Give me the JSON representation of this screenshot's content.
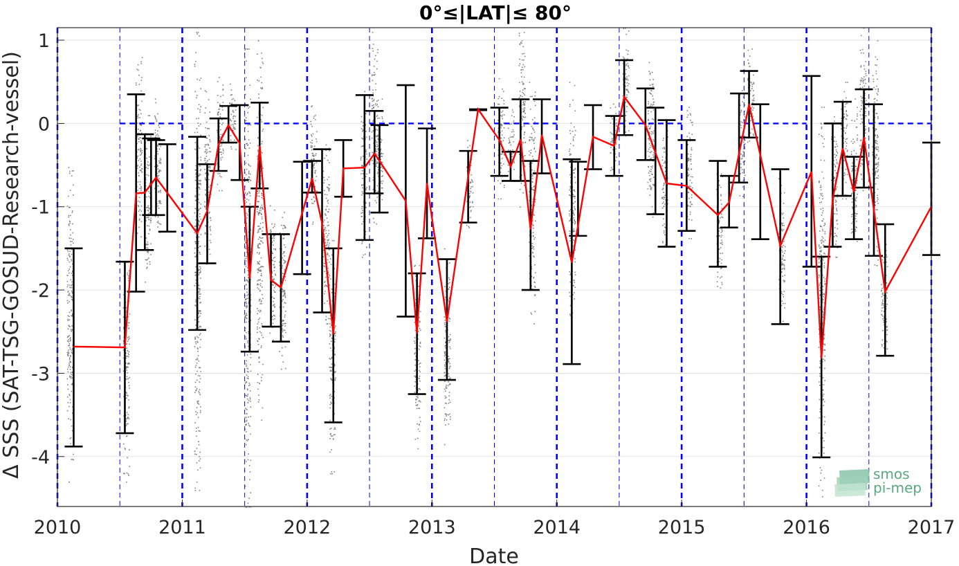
{
  "chart_data": {
    "type": "line",
    "title": "0°≤|LAT|≤ 80°",
    "xlabel": "Date",
    "ylabel": "Δ SSS (SAT-TSG-GOSUD-Research-vessel)",
    "xlim": [
      2010,
      2017
    ],
    "ylim": [
      -4.6,
      1.15
    ],
    "xticks": [
      2010,
      2011,
      2012,
      2013,
      2014,
      2015,
      2016,
      2017
    ],
    "xtick_labels": [
      "2010",
      "2011",
      "2012",
      "2013",
      "2014",
      "2015",
      "2016",
      "2017"
    ],
    "yticks": [
      1,
      0,
      -1,
      -2,
      -3,
      -4
    ],
    "ytick_labels": [
      "1",
      "0",
      "-1",
      "-2",
      "-3",
      "-4"
    ],
    "grid": true,
    "year_lines": [
      2010,
      2011,
      2012,
      2013,
      2014,
      2015,
      2016,
      2017
    ],
    "half_year_lines": [
      2010.5,
      2011.5,
      2012.5,
      2013.5,
      2014.5,
      2015.5,
      2016.5
    ],
    "zero_segments": [
      [
        2010.5,
        2011.0
      ],
      [
        2011.5,
        2012.0
      ],
      [
        2012.5,
        2013.0
      ],
      [
        2013.5,
        2014.0
      ],
      [
        2014.5,
        2015.0
      ],
      [
        2015.5,
        2016.0
      ],
      [
        2016.5,
        2017.0
      ]
    ],
    "series": [
      {
        "type": "line",
        "color": "#ff0000",
        "points": [
          {
            "x": 2010.13,
            "y": -2.68
          },
          {
            "x": 2010.54,
            "y": -2.69
          },
          {
            "x": 2010.63,
            "y": -0.84
          },
          {
            "x": 2010.7,
            "y": -0.83
          },
          {
            "x": 2010.79,
            "y": -0.65
          },
          {
            "x": 2011.12,
            "y": -1.32
          },
          {
            "x": 2011.2,
            "y": -1.05
          },
          {
            "x": 2011.29,
            "y": -0.25
          },
          {
            "x": 2011.37,
            "y": -0.02
          },
          {
            "x": 2011.46,
            "y": -0.24
          },
          {
            "x": 2011.54,
            "y": -1.86
          },
          {
            "x": 2011.62,
            "y": -0.27
          },
          {
            "x": 2011.71,
            "y": -1.88
          },
          {
            "x": 2011.79,
            "y": -1.97
          },
          {
            "x": 2012.04,
            "y": -0.66
          },
          {
            "x": 2012.12,
            "y": -1.2
          },
          {
            "x": 2012.21,
            "y": -2.53
          },
          {
            "x": 2012.29,
            "y": -0.54
          },
          {
            "x": 2012.46,
            "y": -0.53
          },
          {
            "x": 2012.54,
            "y": -0.36
          },
          {
            "x": 2012.79,
            "y": -0.93
          },
          {
            "x": 2012.88,
            "y": -2.52
          },
          {
            "x": 2012.96,
            "y": -0.72
          },
          {
            "x": 2013.12,
            "y": -2.38
          },
          {
            "x": 2013.37,
            "y": 0.17
          },
          {
            "x": 2013.54,
            "y": -0.2
          },
          {
            "x": 2013.63,
            "y": -0.52
          },
          {
            "x": 2013.71,
            "y": -0.19
          },
          {
            "x": 2013.79,
            "y": -1.27
          },
          {
            "x": 2013.88,
            "y": -0.14
          },
          {
            "x": 2014.12,
            "y": -1.67
          },
          {
            "x": 2014.29,
            "y": -0.16
          },
          {
            "x": 2014.46,
            "y": -0.27
          },
          {
            "x": 2014.54,
            "y": 0.32
          },
          {
            "x": 2014.71,
            "y": -0.02
          },
          {
            "x": 2014.88,
            "y": -0.72
          },
          {
            "x": 2015.04,
            "y": -0.75
          },
          {
            "x": 2015.29,
            "y": -1.1
          },
          {
            "x": 2015.38,
            "y": -0.95
          },
          {
            "x": 2015.54,
            "y": 0.23
          },
          {
            "x": 2015.79,
            "y": -1.47
          },
          {
            "x": 2016.04,
            "y": -0.58
          },
          {
            "x": 2016.12,
            "y": -2.82
          },
          {
            "x": 2016.21,
            "y": -0.9
          },
          {
            "x": 2016.29,
            "y": -0.3
          },
          {
            "x": 2016.38,
            "y": -0.82
          },
          {
            "x": 2016.46,
            "y": -0.17
          },
          {
            "x": 2016.63,
            "y": -2.02
          },
          {
            "x": 2017.0,
            "y": -1.0
          }
        ]
      },
      {
        "type": "errorbar",
        "color": "#000000",
        "bars": [
          {
            "x": 2010.13,
            "low": -3.88,
            "high": -1.5
          },
          {
            "x": 2010.54,
            "low": -3.72,
            "high": -1.66
          },
          {
            "x": 2010.63,
            "low": -2.02,
            "high": 0.35
          },
          {
            "x": 2010.7,
            "low": -1.52,
            "high": -0.13
          },
          {
            "x": 2010.79,
            "low": -1.1,
            "high": -0.2
          },
          {
            "x": 2010.88,
            "low": -1.3,
            "high": -0.25
          },
          {
            "x": 2010.75,
            "low": -1.1,
            "high": -0.18
          },
          {
            "x": 2011.12,
            "low": -2.48,
            "high": -0.16
          },
          {
            "x": 2011.2,
            "low": -1.68,
            "high": -0.49
          },
          {
            "x": 2011.29,
            "low": -0.57,
            "high": 0.06
          },
          {
            "x": 2011.37,
            "low": -0.23,
            "high": 0.21
          },
          {
            "x": 2011.46,
            "low": -0.68,
            "high": 0.22
          },
          {
            "x": 2011.54,
            "low": -2.74,
            "high": -1.0
          },
          {
            "x": 2011.62,
            "low": -0.78,
            "high": 0.25
          },
          {
            "x": 2011.71,
            "low": -2.44,
            "high": -1.33
          },
          {
            "x": 2011.79,
            "low": -2.62,
            "high": -1.33
          },
          {
            "x": 2011.96,
            "low": -1.81,
            "high": -0.46
          },
          {
            "x": 2012.04,
            "low": -0.83,
            "high": -0.45
          },
          {
            "x": 2012.12,
            "low": -2.27,
            "high": -0.31
          },
          {
            "x": 2012.21,
            "low": -3.59,
            "high": -1.5
          },
          {
            "x": 2012.29,
            "low": -0.88,
            "high": -0.2
          },
          {
            "x": 2012.46,
            "low": -1.4,
            "high": 0.34
          },
          {
            "x": 2012.54,
            "low": -0.84,
            "high": 0.15
          },
          {
            "x": 2012.58,
            "low": -1.07,
            "high": -0.02
          },
          {
            "x": 2012.79,
            "low": -2.32,
            "high": 0.46
          },
          {
            "x": 2012.88,
            "low": -3.25,
            "high": -1.8
          },
          {
            "x": 2012.96,
            "low": -1.38,
            "high": -0.06
          },
          {
            "x": 2013.12,
            "low": -3.08,
            "high": -1.63
          },
          {
            "x": 2013.29,
            "low": -1.19,
            "high": -0.33
          },
          {
            "x": 2013.37,
            "low": 0.16,
            "high": 0.17
          },
          {
            "x": 2013.54,
            "low": -0.63,
            "high": 0.19
          },
          {
            "x": 2013.63,
            "low": -0.69,
            "high": -0.34
          },
          {
            "x": 2013.71,
            "low": -0.69,
            "high": 0.29
          },
          {
            "x": 2013.79,
            "low": -2.0,
            "high": -0.45
          },
          {
            "x": 2013.88,
            "low": -0.6,
            "high": 0.29
          },
          {
            "x": 2014.12,
            "low": -2.89,
            "high": -0.43
          },
          {
            "x": 2014.17,
            "low": -1.35,
            "high": -0.46
          },
          {
            "x": 2014.29,
            "low": -0.55,
            "high": 0.22
          },
          {
            "x": 2014.46,
            "low": -0.63,
            "high": 0.09
          },
          {
            "x": 2014.54,
            "low": -0.14,
            "high": 0.76
          },
          {
            "x": 2014.71,
            "low": -0.44,
            "high": 0.42
          },
          {
            "x": 2014.79,
            "low": -1.09,
            "high": 0.19
          },
          {
            "x": 2014.88,
            "low": -1.48,
            "high": 0.04
          },
          {
            "x": 2015.04,
            "low": -1.29,
            "high": -0.2
          },
          {
            "x": 2015.29,
            "low": -1.72,
            "high": -0.45
          },
          {
            "x": 2015.38,
            "low": -1.25,
            "high": -0.63
          },
          {
            "x": 2015.46,
            "low": -0.71,
            "high": 0.36
          },
          {
            "x": 2015.54,
            "low": -0.17,
            "high": 0.63
          },
          {
            "x": 2015.63,
            "low": -1.39,
            "high": 0.23
          },
          {
            "x": 2015.79,
            "low": -2.41,
            "high": -0.55
          },
          {
            "x": 2016.04,
            "low": -1.72,
            "high": 0.57
          },
          {
            "x": 2016.12,
            "low": -4.01,
            "high": -1.6
          },
          {
            "x": 2016.21,
            "low": -1.48,
            "high": 0.0
          },
          {
            "x": 2016.29,
            "low": -0.87,
            "high": 0.26
          },
          {
            "x": 2016.38,
            "low": -1.39,
            "high": -0.4
          },
          {
            "x": 2016.46,
            "low": -0.77,
            "high": 0.41
          },
          {
            "x": 2016.54,
            "low": -1.59,
            "high": 0.23
          },
          {
            "x": 2016.63,
            "low": -2.79,
            "high": -1.21
          },
          {
            "x": 2017.0,
            "low": -1.58,
            "high": -0.23
          }
        ]
      }
    ],
    "scatter_color": "#808080",
    "scatter_clusters": [
      {
        "x": 2010.1,
        "low": -4.3,
        "high": -0.4
      },
      {
        "x": 2010.55,
        "low": -4.3,
        "high": -1.6
      },
      {
        "x": 2010.65,
        "low": -1.5,
        "high": 0.9
      },
      {
        "x": 2010.72,
        "low": -1.9,
        "high": 0.1
      },
      {
        "x": 2010.8,
        "low": -1.5,
        "high": 0.3
      },
      {
        "x": 2011.12,
        "low": -4.4,
        "high": 1.1
      },
      {
        "x": 2011.2,
        "low": -1.8,
        "high": 0.4
      },
      {
        "x": 2011.3,
        "low": -0.8,
        "high": 0.6
      },
      {
        "x": 2011.4,
        "low": -0.4,
        "high": 0.5
      },
      {
        "x": 2011.52,
        "low": -4.6,
        "high": 0.9
      },
      {
        "x": 2011.62,
        "low": -3.6,
        "high": 1.0
      },
      {
        "x": 2011.72,
        "low": -2.6,
        "high": -0.9
      },
      {
        "x": 2011.8,
        "low": -3.0,
        "high": -0.9
      },
      {
        "x": 2012.05,
        "low": -1.2,
        "high": 0.3
      },
      {
        "x": 2012.15,
        "low": -2.4,
        "high": -0.2
      },
      {
        "x": 2012.2,
        "low": -4.2,
        "high": -1.4
      },
      {
        "x": 2012.45,
        "low": -1.6,
        "high": 0.4
      },
      {
        "x": 2012.54,
        "low": -1.2,
        "high": 1.1
      },
      {
        "x": 2012.58,
        "low": -1.0,
        "high": 0.3
      },
      {
        "x": 2012.88,
        "low": -3.9,
        "high": -1.7
      },
      {
        "x": 2013.12,
        "low": -3.9,
        "high": -1.5
      },
      {
        "x": 2013.3,
        "low": -1.3,
        "high": -0.2
      },
      {
        "x": 2013.55,
        "low": -0.9,
        "high": 0.6
      },
      {
        "x": 2013.63,
        "low": -0.7,
        "high": 0.2
      },
      {
        "x": 2013.72,
        "low": -1.0,
        "high": 1.1
      },
      {
        "x": 2013.8,
        "low": -2.4,
        "high": 0.5
      },
      {
        "x": 2014.12,
        "low": -2.4,
        "high": 0.5
      },
      {
        "x": 2014.45,
        "low": -0.6,
        "high": 0.3
      },
      {
        "x": 2014.55,
        "low": -0.2,
        "high": 1.15
      },
      {
        "x": 2014.75,
        "low": -1.2,
        "high": 0.9
      },
      {
        "x": 2014.86,
        "low": -1.6,
        "high": 0.1
      },
      {
        "x": 2015.06,
        "low": -1.4,
        "high": 0.2
      },
      {
        "x": 2015.3,
        "low": -2.1,
        "high": -0.6
      },
      {
        "x": 2015.48,
        "low": -0.9,
        "high": 0.4
      },
      {
        "x": 2015.55,
        "low": -0.3,
        "high": 0.9
      },
      {
        "x": 2015.8,
        "low": -2.5,
        "high": -0.6
      },
      {
        "x": 2016.12,
        "low": -4.6,
        "high": 0.2
      },
      {
        "x": 2016.22,
        "low": -1.6,
        "high": 0.2
      },
      {
        "x": 2016.3,
        "low": -0.9,
        "high": 0.5
      },
      {
        "x": 2016.38,
        "low": -1.6,
        "high": 0.3
      },
      {
        "x": 2016.45,
        "low": -0.8,
        "high": 1.15
      },
      {
        "x": 2016.55,
        "low": -1.7,
        "high": 1.0
      },
      {
        "x": 2016.62,
        "low": -2.9,
        "high": -1.4
      }
    ]
  },
  "logo": {
    "line1": "smos",
    "line2": "pi-mep",
    "color": "#5aa882"
  }
}
